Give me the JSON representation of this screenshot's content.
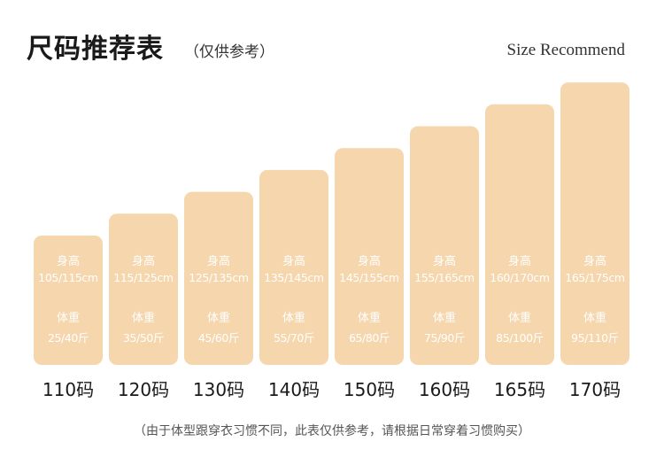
{
  "header": {
    "title": "尺码推荐表",
    "subtitle": "（仅供参考）",
    "title_en": "Size Recommend"
  },
  "chart_data": {
    "type": "bar",
    "title": "尺码推荐表",
    "categories": [
      "110码",
      "120码",
      "130码",
      "140码",
      "150码",
      "160码",
      "165码",
      "170码"
    ],
    "series": [
      {
        "name": "身高",
        "values": [
          "105/115cm",
          "115/125cm",
          "125/135cm",
          "135/145cm",
          "145/155cm",
          "155/165cm",
          "160/170cm",
          "165/175cm"
        ]
      },
      {
        "name": "体重",
        "values": [
          "25/40斤",
          "35/50斤",
          "45/60斤",
          "55/70斤",
          "65/80斤",
          "75/90斤",
          "85/100斤",
          "95/110斤"
        ]
      }
    ],
    "bar_levels": [
      1,
      2,
      3,
      4,
      5,
      6,
      7,
      8
    ],
    "colors": {
      "bar": "#f6d6ad",
      "bar_text": "#ffffff"
    },
    "grid": false,
    "legend": "none"
  },
  "footnote": "（由于体型跟穿衣习惯不同，此表仅供参考，请根据日常穿着习惯购买）"
}
